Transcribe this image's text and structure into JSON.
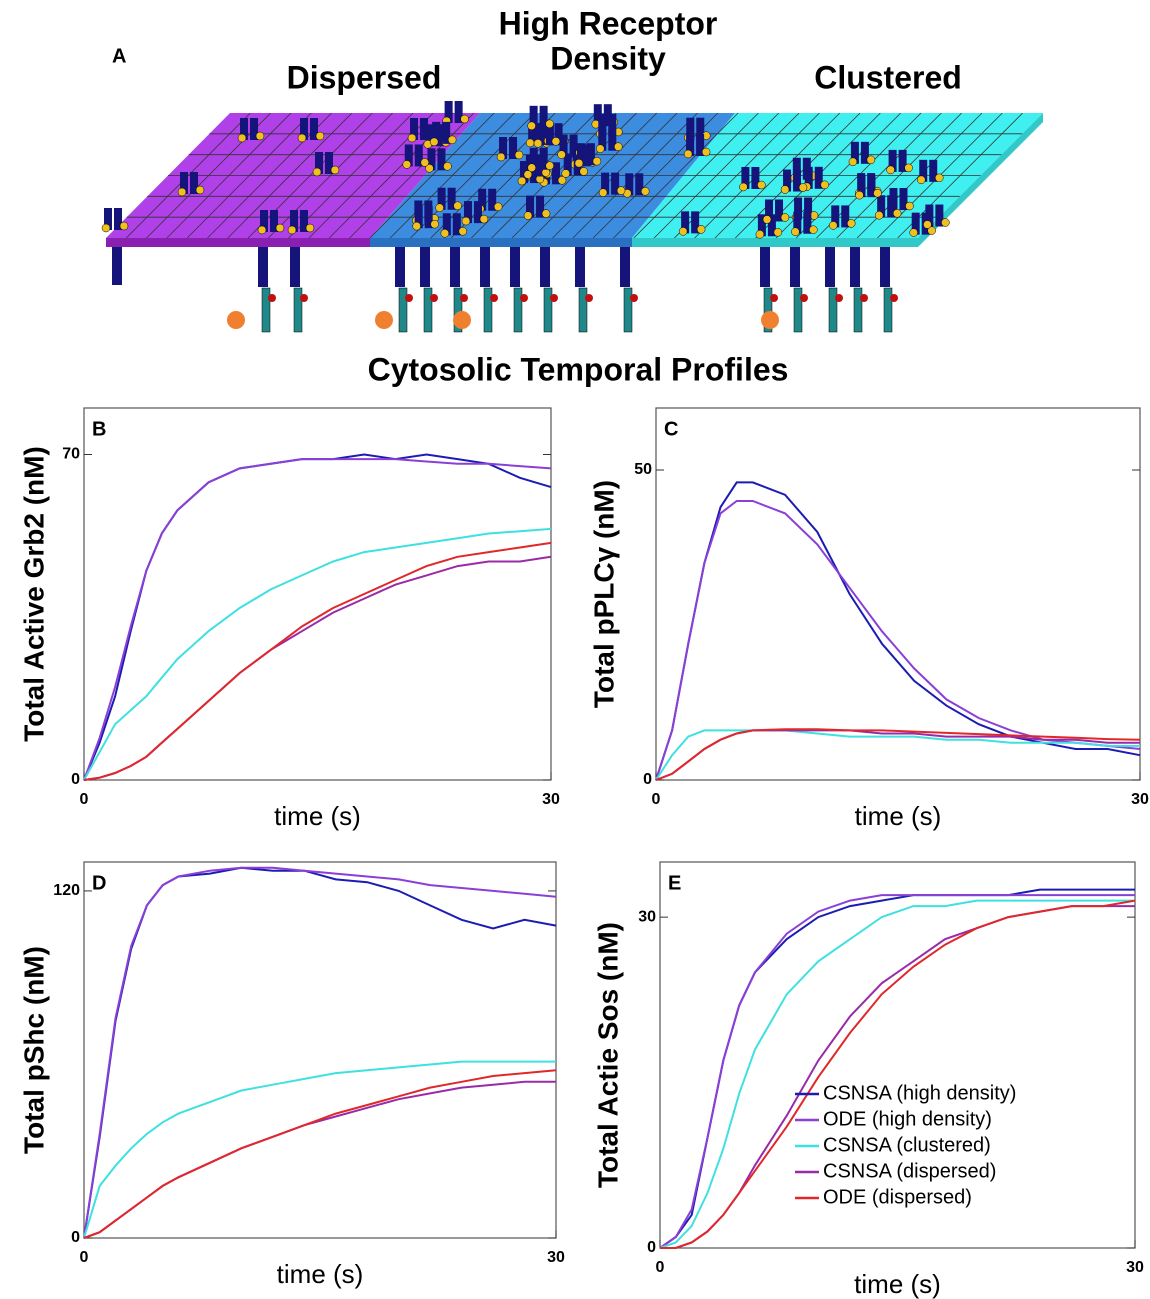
{
  "diagram": {
    "panel": "A",
    "title_lines": [
      "High Receptor",
      "Density"
    ],
    "left_label": "Dispersed",
    "right_label": "Clustered",
    "section_title": "Cytosolic Temporal Profiles"
  },
  "chart_data": [
    {
      "type": "line",
      "panel": "B",
      "ylabel": "Total Active Grb2 (nM)",
      "xlabel": "time (s)",
      "xlim": [
        0,
        30
      ],
      "xticks": [
        0,
        30
      ],
      "ylim": [
        0,
        80
      ],
      "yticks": [
        0,
        70
      ],
      "x": [
        0,
        1,
        2,
        3,
        4,
        5,
        6,
        8,
        10,
        12,
        14,
        16,
        18,
        20,
        22,
        24,
        26,
        28,
        30
      ],
      "series": [
        {
          "color": "#1c1cb4",
          "values": [
            0,
            8,
            18,
            32,
            45,
            53,
            58,
            64,
            67,
            68,
            69,
            69,
            70,
            69,
            70,
            69,
            68,
            65,
            63
          ]
        },
        {
          "color": "#8a3fd6",
          "values": [
            0,
            9,
            20,
            33,
            45,
            53,
            58,
            64,
            67,
            68,
            69,
            69,
            69,
            69,
            68.5,
            68,
            68,
            67.5,
            67
          ]
        },
        {
          "color": "#3fe0e0",
          "values": [
            0,
            6,
            12,
            15,
            18,
            22,
            26,
            32,
            37,
            41,
            44,
            47,
            49,
            50,
            51,
            52,
            53,
            53.5,
            54
          ]
        },
        {
          "color": "#9a2aa8",
          "values": [
            0,
            0.5,
            1.5,
            3,
            5,
            8,
            11,
            17,
            23,
            28,
            32,
            36,
            39,
            42,
            44,
            46,
            47,
            47,
            48
          ]
        },
        {
          "color": "#e0282a",
          "values": [
            0,
            0.5,
            1.5,
            3,
            5,
            8,
            11,
            17,
            23,
            28,
            33,
            37,
            40,
            43,
            46,
            48,
            49,
            50,
            51
          ]
        }
      ]
    },
    {
      "type": "line",
      "panel": "C",
      "ylabel": "Total pPLCγ (nM)",
      "xlabel": "time (s)",
      "xlim": [
        0,
        30
      ],
      "xticks": [
        0,
        30
      ],
      "ylim": [
        0,
        60
      ],
      "yticks": [
        0,
        50
      ],
      "x": [
        0,
        1,
        2,
        3,
        4,
        5,
        6,
        8,
        10,
        12,
        14,
        16,
        18,
        20,
        22,
        24,
        26,
        28,
        30
      ],
      "series": [
        {
          "color": "#1c1cb4",
          "values": [
            0,
            8,
            22,
            35,
            44,
            48,
            48,
            46,
            40,
            30,
            22,
            16,
            12,
            9,
            7,
            6,
            5,
            5,
            4
          ]
        },
        {
          "color": "#8a3fd6",
          "values": [
            0,
            8,
            22,
            35,
            43,
            45,
            45,
            43,
            38,
            31,
            24,
            18,
            13,
            10,
            8,
            6.5,
            6,
            5.5,
            5
          ]
        },
        {
          "color": "#3fe0e0",
          "values": [
            0,
            4,
            7,
            8,
            8,
            8,
            8,
            8,
            7.5,
            7,
            7,
            7,
            6.5,
            6.5,
            6,
            6,
            6,
            5.5,
            5.5
          ]
        },
        {
          "color": "#9a2aa8",
          "values": [
            0,
            1,
            3,
            5,
            6.5,
            7.5,
            8,
            8,
            8,
            8,
            7.5,
            7.5,
            7,
            7,
            7,
            6.5,
            6.5,
            6,
            6
          ]
        },
        {
          "color": "#e0282a",
          "values": [
            0,
            1,
            3,
            5,
            6.5,
            7.5,
            8,
            8.2,
            8.2,
            8,
            8,
            7.8,
            7.6,
            7.4,
            7.2,
            7,
            6.8,
            6.6,
            6.5
          ]
        }
      ]
    },
    {
      "type": "line",
      "panel": "D",
      "ylabel": "Total pShc (nM)",
      "xlabel": "time (s)",
      "xlim": [
        0,
        30
      ],
      "xticks": [
        0,
        30
      ],
      "ylim": [
        0,
        130
      ],
      "yticks": [
        0,
        120
      ],
      "x": [
        0,
        1,
        2,
        3,
        4,
        5,
        6,
        8,
        10,
        12,
        14,
        16,
        18,
        20,
        22,
        24,
        26,
        28,
        30
      ],
      "series": [
        {
          "color": "#1c1cb4",
          "values": [
            0,
            35,
            75,
            100,
            115,
            122,
            125,
            126,
            128,
            127,
            127,
            124,
            123,
            120,
            115,
            110,
            107,
            110,
            108
          ]
        },
        {
          "color": "#8a3fd6",
          "values": [
            0,
            36,
            76,
            101,
            115,
            122,
            125,
            127,
            128,
            128,
            127,
            126,
            125,
            124,
            122,
            121,
            120,
            119,
            118
          ]
        },
        {
          "color": "#3fe0e0",
          "values": [
            0,
            18,
            25,
            31,
            36,
            40,
            43,
            47,
            51,
            53,
            55,
            57,
            58,
            59,
            60,
            61,
            61,
            61,
            61
          ]
        },
        {
          "color": "#9a2aa8",
          "values": [
            0,
            2,
            6,
            10,
            14,
            18,
            21,
            26,
            31,
            35,
            39,
            42,
            45,
            48,
            50,
            52,
            53,
            54,
            54
          ]
        },
        {
          "color": "#e0282a",
          "values": [
            0,
            2,
            6,
            10,
            14,
            18,
            21,
            26,
            31,
            35,
            39,
            43,
            46,
            49,
            52,
            54,
            56,
            57,
            58
          ]
        }
      ]
    },
    {
      "type": "line",
      "panel": "E",
      "ylabel": "Total Actie Sos (nM)",
      "xlabel": "time (s)",
      "xlim": [
        0,
        30
      ],
      "xticks": [
        0,
        30
      ],
      "ylim": [
        0,
        35
      ],
      "yticks": [
        0,
        30
      ],
      "legend": "lower right",
      "x": [
        0,
        1,
        2,
        3,
        4,
        5,
        6,
        8,
        10,
        12,
        14,
        16,
        18,
        20,
        22,
        24,
        26,
        28,
        30
      ],
      "series": [
        {
          "name": "CSNSA (high density)",
          "color": "#1c1cb4",
          "values": [
            0,
            1,
            3,
            10,
            17,
            22,
            25,
            28,
            30,
            31,
            31.5,
            32,
            32,
            32,
            32,
            32.5,
            32.5,
            32.5,
            32.5
          ]
        },
        {
          "name": "ODE (high density)",
          "color": "#8a3fd6",
          "values": [
            0,
            1,
            3.5,
            10,
            17,
            22,
            25,
            28.5,
            30.5,
            31.5,
            32,
            32,
            32,
            32,
            32,
            32,
            32,
            32,
            32
          ]
        },
        {
          "name": "CSNSA (clustered)",
          "color": "#3fe0e0",
          "values": [
            0,
            0.5,
            2,
            5,
            9,
            14,
            18,
            23,
            26,
            28,
            30,
            31,
            31,
            31.5,
            31.5,
            31.5,
            31.5,
            31.5,
            31.5
          ]
        },
        {
          "name": "CSNSA (dispersed)",
          "color": "#9a2aa8",
          "values": [
            0,
            0,
            0.5,
            1.5,
            3,
            5,
            7.5,
            12,
            17,
            21,
            24,
            26,
            28,
            29,
            30,
            30.5,
            31,
            31,
            31
          ]
        },
        {
          "name": "ODE (dispersed)",
          "color": "#e0282a",
          "values": [
            0,
            0,
            0.5,
            1.5,
            3,
            5,
            7,
            11,
            15.5,
            19.5,
            23,
            25.5,
            27.5,
            29,
            30,
            30.5,
            31,
            31,
            31.5
          ]
        }
      ]
    }
  ]
}
